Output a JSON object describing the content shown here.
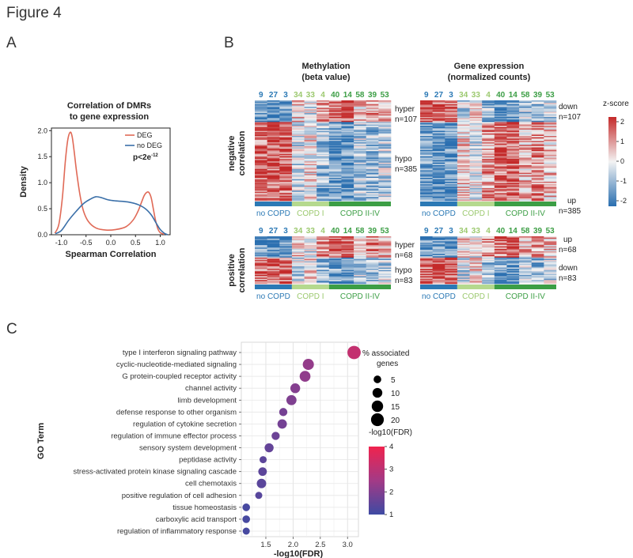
{
  "figure_title": "Figure 4",
  "panels": {
    "a": "A",
    "b": "B",
    "c": "C"
  },
  "panel_a": {
    "title_line1": "Correlation of DMRs",
    "title_line2": "to gene expression",
    "xlabel": "Spearman Correlation",
    "ylabel": "Density",
    "pvalue": "p<2e",
    "pvalue_exp": "-12",
    "legend": [
      {
        "label": "DEG",
        "color": "#e06a57"
      },
      {
        "label": "no DEG",
        "color": "#3a6fa8"
      }
    ]
  },
  "panel_b": {
    "meth_title_line1": "Methylation",
    "meth_title_line2": "(beta value)",
    "expr_title_line1": "Gene expression",
    "expr_title_line2": "(normalized counts)",
    "row_label_neg_line1": "negative",
    "row_label_neg_line2": "correlation",
    "row_label_pos_line1": "positive",
    "row_label_pos_line2": "correlation",
    "samples": [
      {
        "id": "9",
        "group": 0
      },
      {
        "id": "27",
        "group": 0
      },
      {
        "id": "3",
        "group": 0
      },
      {
        "id": "34",
        "group": 1
      },
      {
        "id": "33",
        "group": 1
      },
      {
        "id": "4",
        "group": 1
      },
      {
        "id": "40",
        "group": 2
      },
      {
        "id": "14",
        "group": 2
      },
      {
        "id": "58",
        "group": 2
      },
      {
        "id": "39",
        "group": 2
      },
      {
        "id": "53",
        "group": 2
      }
    ],
    "groups": [
      {
        "label": "no COPD",
        "color": "#2b79b5",
        "text_color": "#2b79b5"
      },
      {
        "label": "COPD I",
        "color": "#b5d98e",
        "text_color": "#9cc96f"
      },
      {
        "label": "COPD II-IV",
        "color": "#3c9e45",
        "text_color": "#3c9e45"
      }
    ],
    "meth_neg_labels": [
      {
        "line1": "hyper",
        "line2": "n=107"
      },
      {
        "line1": "hypo",
        "line2": "n=385"
      }
    ],
    "expr_neg_labels": [
      {
        "line1": "down",
        "line2": "n=107"
      },
      {
        "line1": "up",
        "line2": "n=385"
      }
    ],
    "meth_pos_labels": [
      {
        "line1": "hyper",
        "line2": "n=68"
      },
      {
        "line1": "hypo",
        "line2": "n=83"
      }
    ],
    "expr_pos_labels": [
      {
        "line1": "up",
        "line2": "n=68"
      },
      {
        "line1": "down",
        "line2": "n=83"
      }
    ],
    "zscore": {
      "title": "z-score",
      "ticks": [
        "2",
        "1",
        "0",
        "-1",
        "-2"
      ],
      "high_color": "#c42a2a",
      "mid_color": "#f3f3f3",
      "low_color": "#2a6fb0"
    }
  },
  "chart_data": [
    {
      "type": "line",
      "title": "Correlation of DMRs to gene expression",
      "xlabel": "Spearman Correlation",
      "ylabel": "Density",
      "xlim": [
        -1.2,
        1.2
      ],
      "ylim": [
        0,
        2.05
      ],
      "xticks": [
        "-1.0",
        "-0.5",
        "0.0",
        "0.5",
        "1.0"
      ],
      "yticks": [
        "0.0",
        "0.5",
        "1.0",
        "1.5",
        "2.0"
      ],
      "series": [
        {
          "name": "DEG",
          "color": "#e06a57",
          "x": [
            -1.13,
            -1.05,
            -0.98,
            -0.92,
            -0.87,
            -0.82,
            -0.78,
            -0.74,
            -0.69,
            -0.62,
            -0.55,
            -0.45,
            -0.3,
            -0.1,
            0.1,
            0.3,
            0.45,
            0.55,
            0.62,
            0.68,
            0.74,
            0.78,
            0.82,
            0.86,
            0.9,
            0.95,
            1.0,
            1.08
          ],
          "y": [
            0.03,
            0.2,
            0.7,
            1.4,
            1.82,
            1.97,
            1.88,
            1.6,
            1.2,
            0.75,
            0.45,
            0.25,
            0.13,
            0.09,
            0.1,
            0.15,
            0.28,
            0.45,
            0.62,
            0.76,
            0.82,
            0.8,
            0.7,
            0.5,
            0.3,
            0.12,
            0.04,
            0.01
          ]
        },
        {
          "name": "no DEG",
          "color": "#3a6fa8",
          "x": [
            -1.12,
            -1.0,
            -0.85,
            -0.7,
            -0.55,
            -0.42,
            -0.3,
            -0.18,
            -0.05,
            0.1,
            0.25,
            0.4,
            0.55,
            0.7,
            0.82,
            0.92,
            1.0,
            1.08,
            1.15
          ],
          "y": [
            0.02,
            0.08,
            0.28,
            0.45,
            0.6,
            0.68,
            0.73,
            0.71,
            0.67,
            0.65,
            0.64,
            0.62,
            0.58,
            0.5,
            0.38,
            0.22,
            0.1,
            0.03,
            0.0
          ]
        }
      ]
    },
    {
      "type": "scatter",
      "xlabel": "-log10(FDR)",
      "ylabel": "GO Term",
      "xlim": [
        1.05,
        3.2
      ],
      "xticks": [
        "1.5",
        "2.0",
        "2.5",
        "3.0"
      ],
      "size_legend_title_line1": "% associated",
      "size_legend_title_line2": "genes",
      "size_legend": [
        5,
        10,
        15,
        20
      ],
      "color_legend_title": "-log10(FDR)",
      "color_ticks": [
        "4",
        "3",
        "2",
        "1"
      ],
      "color_range": [
        1,
        4
      ],
      "categories": [
        "type I interferon signaling pathway",
        "cyclic-nucleotide-mediated signaling",
        "G protein-coupled receptor activity",
        "channel activity",
        "limb development",
        "defense response to other organism",
        "regulation of cytokine secretion",
        "regulation of immune effector process",
        "sensory system development",
        "peptidase activity",
        "stress-activated protein kinase signaling cascade",
        "cell chemotaxis",
        "positive regulation of cell adhesion",
        "tissue homeostasis",
        "carboxylic acid transport",
        "regulation of inflammatory response"
      ],
      "x": [
        3.12,
        2.28,
        2.22,
        2.04,
        1.97,
        1.82,
        1.8,
        1.68,
        1.56,
        1.45,
        1.44,
        1.42,
        1.37,
        1.14,
        1.14,
        1.14
      ],
      "size": [
        22,
        14,
        13,
        10,
        11,
        6,
        9,
        6,
        8,
        4,
        7,
        9,
        4,
        5,
        5,
        4
      ]
    }
  ]
}
